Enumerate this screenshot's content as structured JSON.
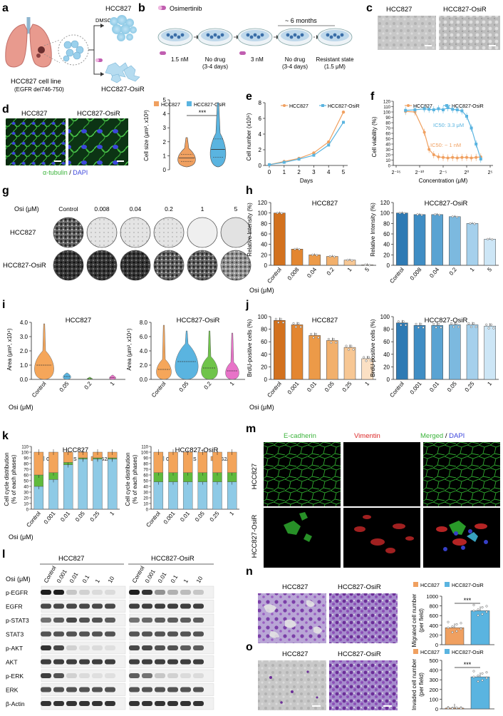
{
  "panels": {
    "a": {
      "letter": "a",
      "dmso": "DMSO",
      "cell_line": "HCC827 cell line",
      "mutation": "(EGFR del746-750)",
      "top_label": "HCC827",
      "bottom_label": "HCC827-OsiR"
    },
    "b": {
      "letter": "b",
      "drug": "Osimertinib",
      "months": "~ 6 months",
      "steps": [
        "1.5 nM",
        "No drug",
        "3 nM",
        "No drug",
        "Resistant state"
      ],
      "subs": [
        "",
        "(3-4 days)",
        "",
        "(3-4 days)",
        "(1.5 μM)"
      ]
    },
    "c": {
      "letter": "c",
      "left": "HCC827",
      "right": "HCC827-OsiR"
    },
    "d": {
      "letter": "d",
      "left": "HCC827",
      "right": "HCC827-OsiR",
      "stain_a": "α-tubulin",
      "stain_sep": " / ",
      "stain_b": "DAPI",
      "legend": [
        "HCC827",
        "HCC827-OsiR"
      ],
      "sig": "***",
      "ylabel": "Cell size (μm², x10³)",
      "yticks": [
        "0",
        "1",
        "2",
        "3",
        "4",
        "5"
      ]
    },
    "e": {
      "letter": "e",
      "legend": [
        "HCC827",
        "HCC827-OsiR"
      ],
      "ylabel": "Cell number (x10⁵)",
      "xlabel": "Days",
      "xticks": [
        "0",
        "1",
        "2",
        "3",
        "4",
        "5"
      ],
      "yticks": [
        "0",
        "2",
        "4",
        "6",
        "8"
      ]
    },
    "f": {
      "letter": "f",
      "legend": [
        "HCC827",
        "HCC827-OsiR"
      ],
      "ylabel": "Cell viability (%)",
      "xlabel": "Concentration (μM)",
      "yticks": [
        "0",
        "10",
        "20",
        "30",
        "40",
        "50",
        "60",
        "70",
        "80",
        "90",
        "100",
        "110",
        "120"
      ],
      "xticks": [
        "2⁻¹⁵",
        "2⁻¹⁰",
        "2⁻⁵",
        "2⁰",
        "2⁵"
      ],
      "ic50_osir": "IC50: 3.3 μM",
      "ic50_par": "IC50: ~ 1 nM"
    },
    "g": {
      "letter": "g",
      "osi": "Osi (μM)",
      "cols": [
        "Control",
        "0.008",
        "0.04",
        "0.2",
        "1",
        "5"
      ],
      "rows": [
        "HCC827",
        "HCC827-OsiR"
      ]
    },
    "h": {
      "letter": "h",
      "title_left": "HCC827",
      "title_right": "HCC827-OsiR",
      "ylabel": "Relative Intensity (%)",
      "osi": "Osi (μM)",
      "yticks": [
        "0",
        "20",
        "40",
        "60",
        "80",
        "100",
        "120"
      ],
      "cats": [
        "Control",
        "0.008",
        "0.04",
        "0.2",
        "1",
        "5"
      ]
    },
    "i": {
      "letter": "i",
      "title_left": "HCC827",
      "title_right": "HCC827-OsiR",
      "ylabel": "Area (μm², x10⁴)",
      "osi": "Osi (μM)",
      "yticks_left": [
        "0.0",
        "1.0",
        "2.0",
        "3.0",
        "4.0"
      ],
      "yticks_right": [
        "0.0",
        "2.0",
        "4.0",
        "6.0",
        "8.0"
      ],
      "cats": [
        "Control",
        "0.05",
        "0.2",
        "1"
      ]
    },
    "j": {
      "letter": "j",
      "title_left": "HCC827",
      "title_right": "HCC827-OsiR",
      "ylabel": "BrdU-positive cells (%)",
      "osi": "Osi (μM)",
      "yticks": [
        "0",
        "20",
        "40",
        "60",
        "80",
        "100"
      ],
      "cats": [
        "Control",
        "0.001",
        "0.01",
        "0.05",
        "0.25",
        "1"
      ]
    },
    "k": {
      "letter": "k",
      "title_left": "HCC827",
      "title_right": "HCC827-OsiR",
      "ylabel1": "Cell cycle distribution",
      "ylabel2": "(% of each phases)",
      "osi": "Osi (μM)",
      "legend": [
        "G1",
        "S",
        "G2/M"
      ],
      "yticks": [
        "0",
        "10",
        "20",
        "30",
        "40",
        "50",
        "60",
        "70",
        "80",
        "90",
        "100",
        "110"
      ],
      "cats": [
        "Control",
        "0.001",
        "0.01",
        "0.05",
        "0.25",
        "1"
      ]
    },
    "l": {
      "letter": "l",
      "group_left": "HCC827",
      "group_right": "HCC827-OsiR",
      "osi": "Osi (μM)",
      "lanes": [
        "Control",
        "0.001",
        "0.01",
        "0.1",
        "1",
        "10"
      ],
      "bands": [
        "p-EGFR",
        "EGFR",
        "p-STAT3",
        "STAT3",
        "p-AKT",
        "AKT",
        "p-ERK",
        "ERK",
        "β-Actin"
      ]
    },
    "m": {
      "letter": "m",
      "c1": "E-cadherin",
      "c2": "Vimentin",
      "merged_a": "Merged",
      "merged_sep": " / ",
      "merged_b": "DAPI",
      "row1": "HCC827",
      "row2": "HCC827-OsiR"
    },
    "n": {
      "letter": "n",
      "left": "HCC827",
      "right": "HCC827-OsiR",
      "legend": [
        "HCC827",
        "HCC827-OsiR"
      ],
      "sig": "***",
      "ylabel1": "Migrated cell number",
      "ylabel2": "(per field)",
      "yticks": [
        "0",
        "200",
        "400",
        "600",
        "800",
        "1000"
      ]
    },
    "o": {
      "letter": "o",
      "left": "HCC827",
      "right": "HCC827-OsiR",
      "legend": [
        "HCC827",
        "HCC827-OsiR"
      ],
      "sig": "***",
      "ylabel1": "Invaded cell number",
      "ylabel2": "(per field)",
      "yticks": [
        "0",
        "100",
        "200",
        "300",
        "400",
        "500"
      ]
    }
  },
  "colors": {
    "orange": "#f0a060",
    "blue": "#5ab4e0",
    "green_stain": "#3cb43c",
    "blue_stain": "#3c46dc",
    "red_stain": "#dc2828",
    "h_left": [
      "#d2711e",
      "#e38630",
      "#ec9a48",
      "#f2b06c",
      "#f7c794",
      "#fbe0c4"
    ],
    "h_right": [
      "#2e7ab4",
      "#3f8dc4",
      "#5aa3d2",
      "#7cb9df",
      "#a5d0ec",
      "#cde6f6"
    ],
    "cc": [
      "#8ecae6",
      "#5fba3c",
      "#f3a45a"
    ]
  },
  "chart_data": [
    {
      "panel": "d",
      "type": "violin",
      "categories": [
        "HCC827",
        "HCC827-OsiR"
      ],
      "ylim": [
        0,
        5
      ],
      "median": [
        0.85,
        1.45
      ],
      "q1": [
        0.6,
        0.9
      ],
      "q3": [
        1.1,
        2.2
      ],
      "max": [
        2.3,
        4.8
      ]
    },
    {
      "panel": "e",
      "type": "line",
      "x": [
        0,
        1,
        2,
        3,
        4,
        5
      ],
      "ylim": [
        0,
        8
      ],
      "series": [
        {
          "name": "HCC827",
          "values": [
            0.1,
            0.5,
            0.9,
            1.6,
            3.0,
            6.8
          ]
        },
        {
          "name": "HCC827-OsiR",
          "values": [
            0.1,
            0.4,
            0.8,
            1.3,
            2.6,
            5.5
          ]
        }
      ]
    },
    {
      "panel": "f",
      "type": "line",
      "xlabel": "log2 concentration",
      "x": [
        -13,
        -11,
        -9,
        -8,
        -7,
        -6,
        -5,
        -4,
        -3,
        -2,
        -1,
        0,
        1,
        2,
        3
      ],
      "ylim": [
        0,
        120
      ],
      "series": [
        {
          "name": "HCC827",
          "values": [
            101,
            100,
            62,
            30,
            20,
            16,
            15,
            14,
            15,
            14,
            15,
            15,
            14,
            15,
            16
          ]
        },
        {
          "name": "HCC827-OsiR",
          "values": [
            103,
            104,
            106,
            105,
            104,
            106,
            104,
            108,
            105,
            104,
            102,
            92,
            70,
            40,
            12
          ]
        }
      ]
    },
    {
      "panel": "h-left",
      "type": "bar",
      "categories": [
        "Control",
        "0.008",
        "0.04",
        "0.2",
        "1",
        "5"
      ],
      "values": [
        100,
        31,
        20,
        17,
        10,
        1
      ],
      "ylim": [
        0,
        120
      ]
    },
    {
      "panel": "h-right",
      "type": "bar",
      "categories": [
        "Control",
        "0.008",
        "0.04",
        "0.2",
        "1",
        "5"
      ],
      "values": [
        100,
        97,
        97,
        93,
        80,
        50
      ],
      "ylim": [
        0,
        120
      ]
    },
    {
      "panel": "i-left",
      "type": "violin",
      "categories": [
        "Control",
        "0.05",
        "0.2",
        "1"
      ],
      "ylim": [
        0,
        4
      ],
      "median": [
        1.0,
        0.2,
        0.05,
        0.12
      ],
      "max": [
        3.9,
        0.45,
        0.15,
        0.3
      ]
    },
    {
      "panel": "i-right",
      "type": "violin",
      "categories": [
        "Control",
        "0.05",
        "0.2",
        "1"
      ],
      "ylim": [
        0,
        8
      ],
      "median": [
        1.4,
        2.5,
        1.6,
        1.2
      ],
      "max": [
        7.6,
        6.8,
        6.8,
        6.5
      ]
    },
    {
      "panel": "j-left",
      "type": "bar",
      "categories": [
        "Control",
        "0.001",
        "0.01",
        "0.05",
        "0.25",
        "1"
      ],
      "values": [
        94,
        87,
        70,
        62,
        51,
        33
      ],
      "ylim": [
        0,
        100
      ]
    },
    {
      "panel": "j-right",
      "type": "bar",
      "categories": [
        "Control",
        "0.001",
        "0.01",
        "0.05",
        "0.25",
        "1"
      ],
      "values": [
        90,
        86,
        86,
        87,
        87,
        85
      ],
      "ylim": [
        0,
        100
      ]
    },
    {
      "panel": "k-left",
      "type": "stacked-bar",
      "categories": [
        "Control",
        "0.001",
        "0.01",
        "0.05",
        "0.25",
        "1"
      ],
      "series": [
        {
          "name": "G1",
          "values": [
            40,
            52,
            78,
            88,
            88,
            88
          ]
        },
        {
          "name": "S",
          "values": [
            20,
            12,
            4,
            2,
            2,
            2
          ]
        },
        {
          "name": "G2/M",
          "values": [
            40,
            36,
            18,
            10,
            10,
            10
          ]
        }
      ],
      "ylim": [
        0,
        110
      ]
    },
    {
      "panel": "k-right",
      "type": "stacked-bar",
      "categories": [
        "Control",
        "0.001",
        "0.01",
        "0.05",
        "0.25",
        "1"
      ],
      "series": [
        {
          "name": "G1",
          "values": [
            48,
            48,
            48,
            48,
            48,
            48
          ]
        },
        {
          "name": "S",
          "values": [
            16,
            16,
            16,
            16,
            16,
            16
          ]
        },
        {
          "name": "G2/M",
          "values": [
            36,
            36,
            36,
            36,
            36,
            36
          ]
        }
      ],
      "ylim": [
        0,
        110
      ]
    },
    {
      "panel": "n",
      "type": "bar",
      "categories": [
        "HCC827",
        "HCC827-OsiR"
      ],
      "values": [
        350,
        700
      ],
      "ylim": [
        0,
        1000
      ]
    },
    {
      "panel": "o",
      "type": "bar",
      "categories": [
        "HCC827",
        "HCC827-OsiR"
      ],
      "values": [
        8,
        330
      ],
      "ylim": [
        0,
        500
      ]
    }
  ]
}
